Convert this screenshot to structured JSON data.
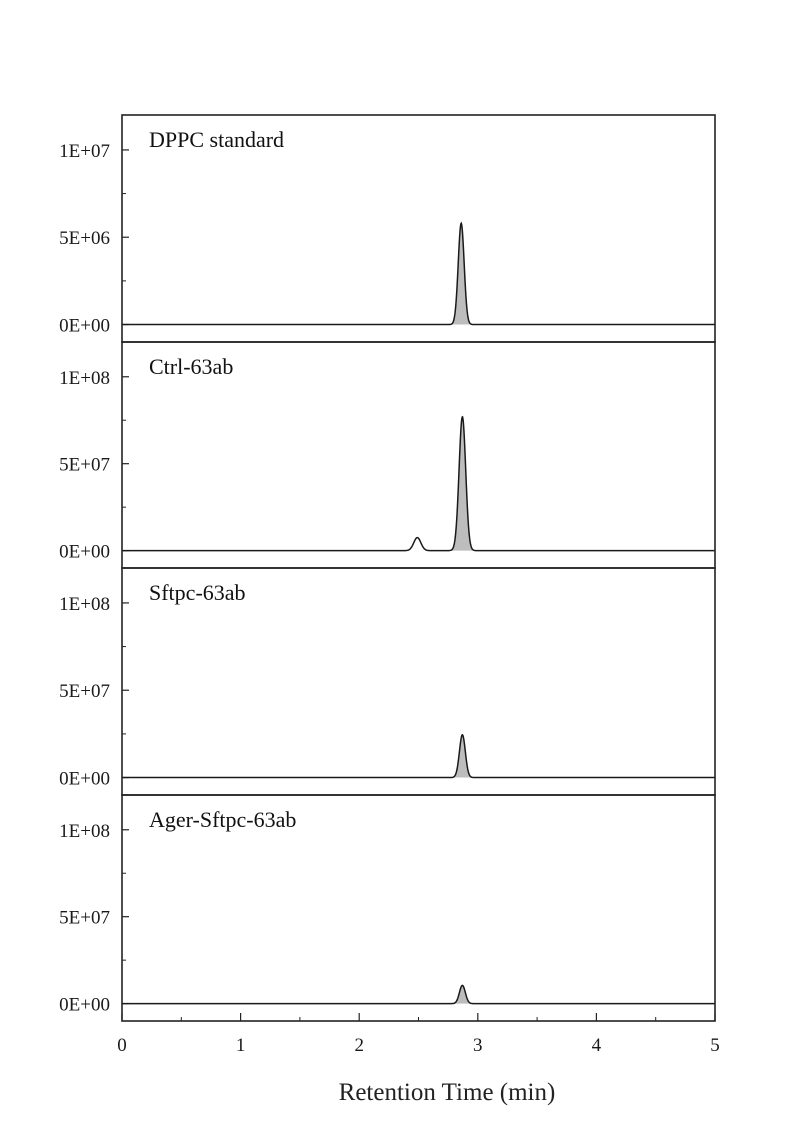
{
  "chart_data": {
    "type": "line",
    "xlabel": "Retention Time (min)",
    "xlim": [
      0,
      5
    ],
    "x_ticks": [
      "0",
      "1",
      "2",
      "3",
      "4",
      "5"
    ],
    "line_color": "#1a1a1a",
    "fill_color": "#bdbdbd",
    "panels": [
      {
        "label": "DPPC standard",
        "ylim": [
          -1000000,
          12000000
        ],
        "y_ticks": [
          {
            "value": 0,
            "label": "0E+00"
          },
          {
            "value": 5000000,
            "label": "5E+06"
          },
          {
            "value": 10000000,
            "label": "1E+07"
          }
        ],
        "peaks": [
          {
            "rt": 2.86,
            "height": 5800000,
            "width": 0.025,
            "filled": true
          }
        ]
      },
      {
        "label": "Ctrl-63ab",
        "ylim": [
          -10000000,
          120000000
        ],
        "y_ticks": [
          {
            "value": 0,
            "label": "0E+00"
          },
          {
            "value": 50000000,
            "label": "5E+07"
          },
          {
            "value": 100000000,
            "label": "1E+08"
          }
        ],
        "peaks": [
          {
            "rt": 2.49,
            "height": 7500000,
            "width": 0.03,
            "filled": false
          },
          {
            "rt": 2.87,
            "height": 77000000,
            "width": 0.028,
            "filled": true
          }
        ]
      },
      {
        "label": "Sftpc-63ab",
        "ylim": [
          -10000000,
          120000000
        ],
        "y_ticks": [
          {
            "value": 0,
            "label": "0E+00"
          },
          {
            "value": 50000000,
            "label": "5E+07"
          },
          {
            "value": 100000000,
            "label": "1E+08"
          }
        ],
        "peaks": [
          {
            "rt": 2.87,
            "height": 24500000,
            "width": 0.025,
            "filled": true
          }
        ]
      },
      {
        "label": "Ager-Sftpc-63ab",
        "ylim": [
          -10000000,
          120000000
        ],
        "y_ticks": [
          {
            "value": 0,
            "label": "0E+00"
          },
          {
            "value": 50000000,
            "label": "5E+07"
          },
          {
            "value": 100000000,
            "label": "1E+08"
          }
        ],
        "peaks": [
          {
            "rt": 2.87,
            "height": 10500000,
            "width": 0.025,
            "filled": true
          }
        ]
      }
    ]
  }
}
